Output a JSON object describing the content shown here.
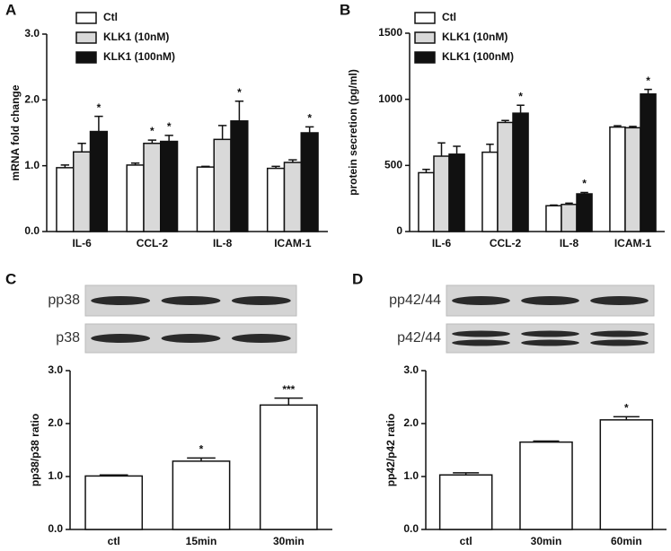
{
  "chart_data": [
    {
      "type": "bar",
      "panel": "A",
      "ylabel": "mRNA fold change",
      "categories": [
        "IL-6",
        "CCL-2",
        "IL-8",
        "ICAM-1"
      ],
      "series": [
        {
          "name": "Ctl",
          "color": "#ffffff",
          "values": [
            0.97,
            1.01,
            0.98,
            0.96
          ],
          "errors": [
            0.04,
            0.03,
            0.01,
            0.03
          ],
          "labels": [
            null,
            null,
            null,
            null
          ]
        },
        {
          "name": "KLK1 (10nM)",
          "color": "#d9d9d9",
          "values": [
            1.21,
            1.34,
            1.4,
            1.05
          ],
          "errors": [
            0.13,
            0.05,
            0.21,
            0.04
          ],
          "labels": [
            null,
            "*",
            null,
            null
          ]
        },
        {
          "name": "KLK1 (100nM)",
          "color": "#111111",
          "values": [
            1.52,
            1.37,
            1.68,
            1.5
          ],
          "errors": [
            0.23,
            0.09,
            0.3,
            0.09
          ],
          "labels": [
            "*",
            "*",
            "*",
            "*"
          ]
        }
      ],
      "ylim": [
        0,
        3
      ],
      "yticks": [
        {
          "value": 0,
          "label": "0.0"
        },
        {
          "value": 1,
          "label": "1.0"
        },
        {
          "value": 2,
          "label": "2.0"
        },
        {
          "value": 3,
          "label": "3.0"
        }
      ],
      "legend": "upper-left"
    },
    {
      "type": "bar",
      "panel": "B",
      "ylabel": "protein secretion (pg/ml)",
      "categories": [
        "IL-6",
        "CCL-2",
        "IL-8",
        "ICAM-1"
      ],
      "series": [
        {
          "name": "Ctl",
          "color": "#ffffff",
          "values": [
            445,
            600,
            195,
            790
          ],
          "errors": [
            25,
            60,
            5,
            10
          ],
          "labels": [
            null,
            null,
            null,
            null
          ]
        },
        {
          "name": "KLK1 (10nM)",
          "color": "#d9d9d9",
          "values": [
            570,
            825,
            205,
            785
          ],
          "errors": [
            100,
            15,
            10,
            10
          ],
          "labels": [
            null,
            null,
            null,
            null
          ]
        },
        {
          "name": "KLK1 (100nM)",
          "color": "#111111",
          "values": [
            585,
            895,
            285,
            1040
          ],
          "errors": [
            60,
            60,
            10,
            35
          ],
          "labels": [
            null,
            "*",
            "*",
            "*"
          ]
        }
      ],
      "ylim": [
        0,
        1500
      ],
      "yticks": [
        0,
        500,
        1000,
        1500
      ],
      "legend": "upper-left"
    },
    {
      "type": "bar",
      "panel": "C",
      "ylabel": "pp38/p38 ratio",
      "blot_labels": [
        "pp38",
        "p38"
      ],
      "categories": [
        "ctl",
        "15min",
        "30min"
      ],
      "series": [
        {
          "color": "#ffffff",
          "values": [
            1.01,
            1.29,
            2.35
          ],
          "errors": [
            0.02,
            0.06,
            0.13
          ],
          "labels": [
            null,
            "*",
            "***"
          ]
        }
      ],
      "ylim": [
        0,
        3
      ],
      "yticks": [
        {
          "value": 0,
          "label": "0.0"
        },
        {
          "value": 1,
          "label": "1.0"
        },
        {
          "value": 2,
          "label": "2.0"
        },
        {
          "value": 3,
          "label": "3.0"
        }
      ]
    },
    {
      "type": "bar",
      "panel": "D",
      "ylabel": "pp42/p42 ratio",
      "blot_labels": [
        "pp42/44",
        "p42/44"
      ],
      "categories": [
        "ctl",
        "30min",
        "60min"
      ],
      "series": [
        {
          "color": "#ffffff",
          "values": [
            1.03,
            1.65,
            2.07
          ],
          "errors": [
            0.04,
            0.02,
            0.06
          ],
          "labels": [
            null,
            null,
            "*"
          ]
        }
      ],
      "ylim": [
        0,
        3
      ],
      "yticks": [
        {
          "value": 0,
          "label": "0.0"
        },
        {
          "value": 1,
          "label": "1.0"
        },
        {
          "value": 2,
          "label": "2.0"
        },
        {
          "value": 3,
          "label": "3.0"
        }
      ]
    }
  ]
}
